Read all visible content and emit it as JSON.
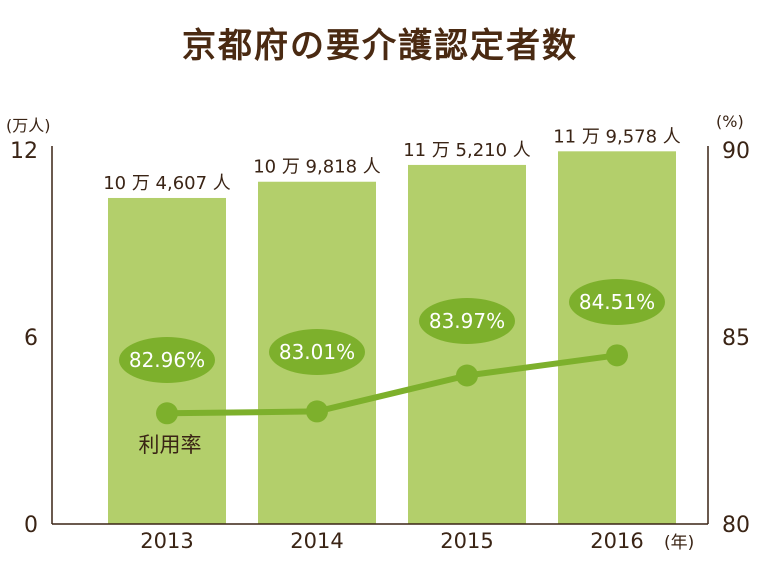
{
  "title": "京都府の要介護認定者数",
  "left_axis_unit": "(万人)",
  "right_axis_unit": "(%)",
  "year_unit": "(年)",
  "colors": {
    "bar": "#b3cf6b",
    "line": "#7db02c",
    "text": "#3a2415"
  },
  "chart_data": {
    "type": "bar",
    "categories": [
      "2013",
      "2014",
      "2015",
      "2016"
    ],
    "series": [
      {
        "values": [
          10.4607,
          10.9818,
          11.521,
          11.9578
        ],
        "labels": [
          "10 万 4,607 人",
          "10 万 9,818 人",
          "11 万 5,210 人",
          "11 万 9,578 人"
        ]
      },
      {
        "name": "利用率",
        "type": "line",
        "axis": "right",
        "values": [
          82.96,
          83.01,
          83.97,
          84.51
        ],
        "labels": [
          "82.96%",
          "83.01%",
          "83.97%",
          "84.51%"
        ]
      }
    ],
    "y_left": {
      "lim": [
        0,
        12
      ],
      "ticks": [
        "0",
        "6",
        "12"
      ]
    },
    "y_right": {
      "lim": [
        80,
        90
      ],
      "ticks": [
        "80",
        "85",
        "90"
      ]
    },
    "grid": false,
    "legend": "none"
  }
}
